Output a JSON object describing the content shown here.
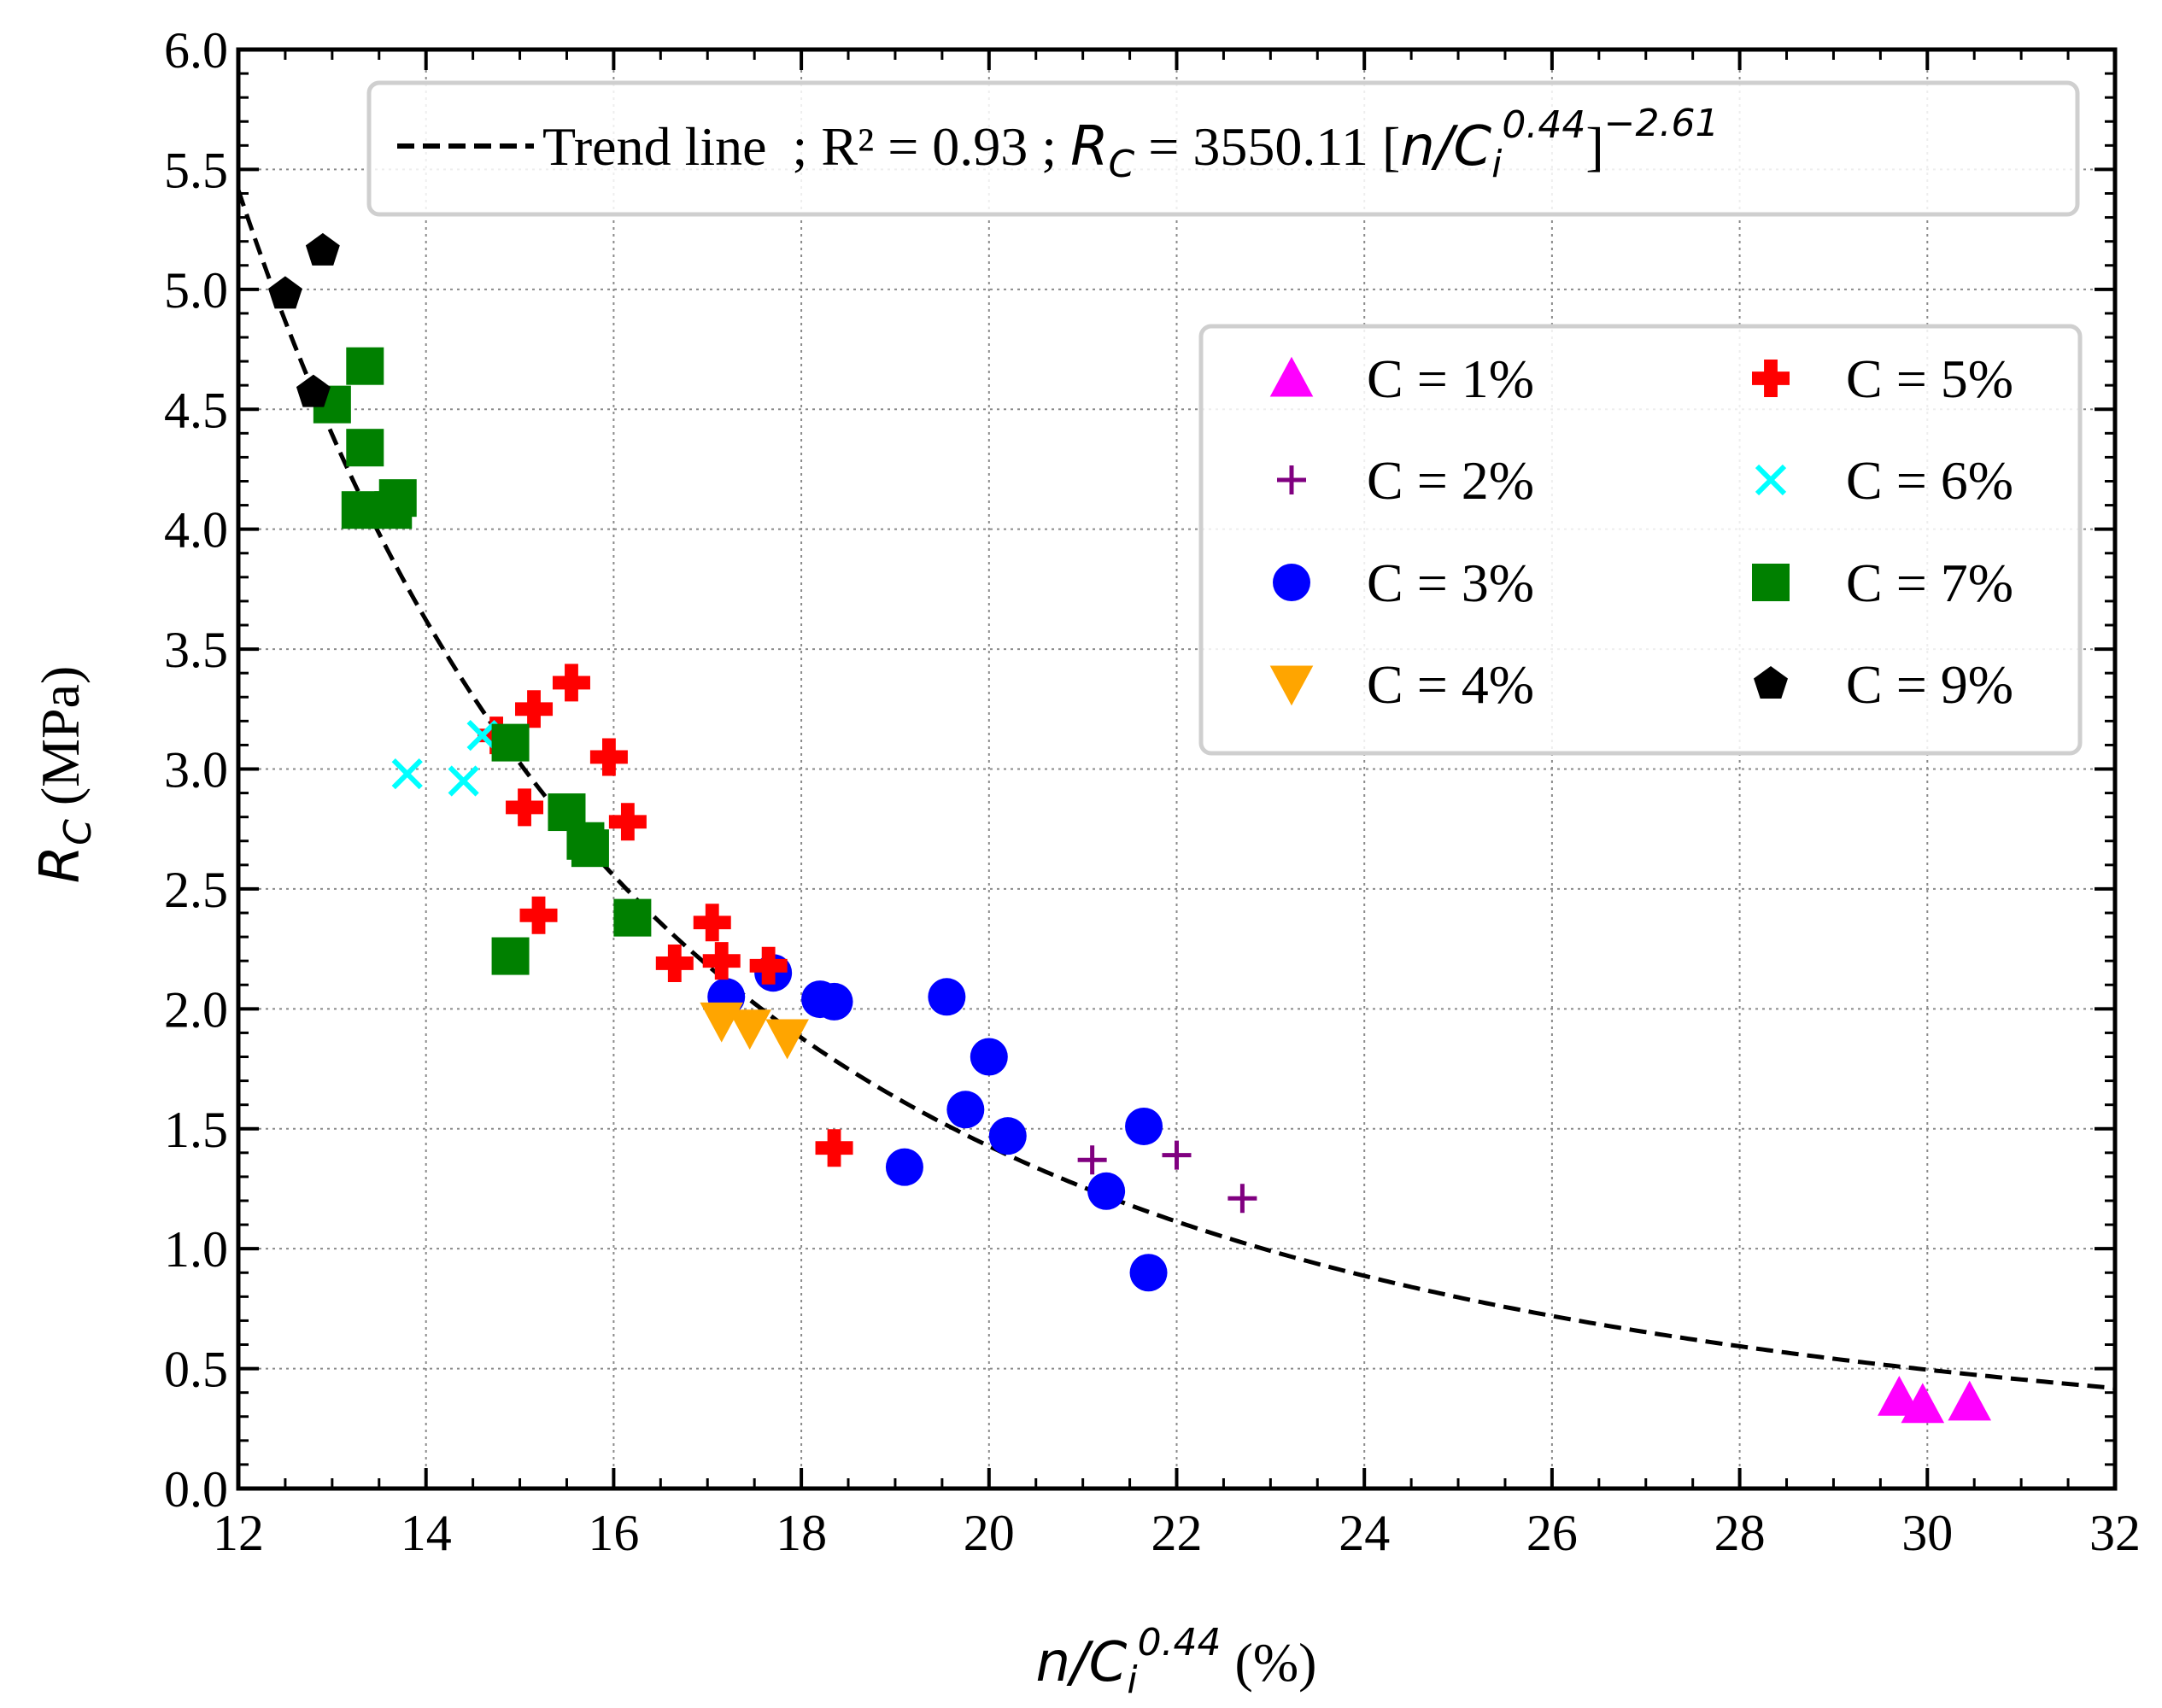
{
  "chart_data": {
    "type": "scatter",
    "xlabel": {
      "base": "n/C",
      "sub": "i",
      "sup": "0.44",
      "unit": " (%)"
    },
    "ylabel": {
      "base": "R",
      "sub": "C",
      "unit": " (MPa)"
    },
    "xlim": [
      12,
      32
    ],
    "ylim": [
      0.0,
      6.0
    ],
    "x_ticks": [
      "12",
      "14",
      "16",
      "18",
      "20",
      "22",
      "24",
      "26",
      "28",
      "30",
      "32"
    ],
    "y_ticks": [
      "0.0",
      "0.5",
      "1.0",
      "1.5",
      "2.0",
      "2.5",
      "3.0",
      "3.5",
      "4.0",
      "4.5",
      "5.0",
      "5.5",
      "6.0"
    ],
    "grid": true,
    "legend_position": "right",
    "trend": {
      "label": "Trend line",
      "r2_text": "; R² = 0.93 ; ",
      "eq_lhs": "R",
      "eq_lhs_sub": "C",
      "eq_mid": " = 3550.11 [",
      "eq_var": "n/C",
      "eq_var_sub": "i",
      "eq_var_sup": "0.44",
      "eq_close": "]",
      "eq_exp": "−2.61",
      "coef": 3550.11,
      "exponent": -2.61
    },
    "series": [
      {
        "name": "C = 1%",
        "marker": "triangle-up",
        "color": "#ff00ff",
        "points": [
          [
            29.7,
            0.38
          ],
          [
            29.95,
            0.35
          ],
          [
            30.45,
            0.36
          ]
        ]
      },
      {
        "name": "C = 2%",
        "marker": "plus",
        "color": "#800080",
        "points": [
          [
            21.1,
            1.37
          ],
          [
            22.0,
            1.39
          ],
          [
            22.7,
            1.21
          ]
        ]
      },
      {
        "name": "C = 3%",
        "marker": "circle",
        "color": "#0000ff",
        "points": [
          [
            17.2,
            2.05
          ],
          [
            17.7,
            2.15
          ],
          [
            18.2,
            2.04
          ],
          [
            18.35,
            2.03
          ],
          [
            19.1,
            1.34
          ],
          [
            19.55,
            2.05
          ],
          [
            19.75,
            1.58
          ],
          [
            20.0,
            1.8
          ],
          [
            20.2,
            1.47
          ],
          [
            21.25,
            1.24
          ],
          [
            21.65,
            1.51
          ],
          [
            21.7,
            0.9
          ]
        ]
      },
      {
        "name": "C = 4%",
        "marker": "triangle-down",
        "color": "#ffa500",
        "points": [
          [
            17.15,
            1.95
          ],
          [
            17.45,
            1.92
          ],
          [
            17.85,
            1.88
          ]
        ]
      },
      {
        "name": "C = 5%",
        "marker": "pluscross",
        "color": "#ff0000",
        "points": [
          [
            14.75,
            3.14
          ],
          [
            15.05,
            2.84
          ],
          [
            15.15,
            3.25
          ],
          [
            15.2,
            2.39
          ],
          [
            15.55,
            3.36
          ],
          [
            15.95,
            3.05
          ],
          [
            16.15,
            2.78
          ],
          [
            16.65,
            2.19
          ],
          [
            17.05,
            2.36
          ],
          [
            17.15,
            2.2
          ],
          [
            17.65,
            2.18
          ],
          [
            18.35,
            1.42
          ]
        ]
      },
      {
        "name": "C = 6%",
        "marker": "x",
        "color": "#00ffff",
        "points": [
          [
            13.8,
            2.98
          ],
          [
            14.4,
            2.95
          ],
          [
            14.6,
            3.14
          ]
        ]
      },
      {
        "name": "C = 7%",
        "marker": "square",
        "color": "#008000",
        "points": [
          [
            13.0,
            4.52
          ],
          [
            13.3,
            4.08
          ],
          [
            13.35,
            4.68
          ],
          [
            13.35,
            4.34
          ],
          [
            13.65,
            4.08
          ],
          [
            13.7,
            4.13
          ],
          [
            14.9,
            3.11
          ],
          [
            14.9,
            2.22
          ],
          [
            15.5,
            2.82
          ],
          [
            15.7,
            2.7
          ],
          [
            15.75,
            2.67
          ],
          [
            16.2,
            2.38
          ]
        ]
      },
      {
        "name": "C = 9%",
        "marker": "pentagon",
        "color": "#000000",
        "points": [
          [
            12.5,
            4.98
          ],
          [
            12.8,
            4.57
          ],
          [
            12.9,
            5.16
          ]
        ]
      }
    ]
  }
}
